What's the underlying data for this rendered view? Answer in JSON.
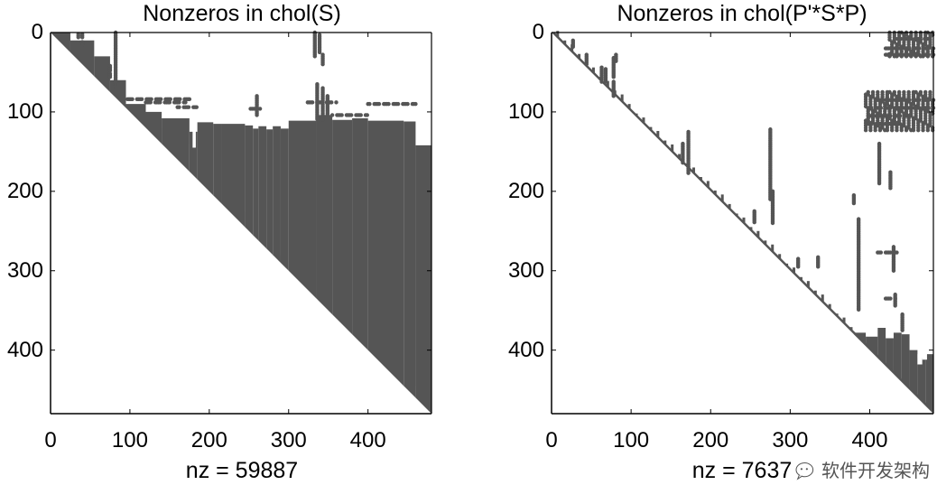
{
  "chart_data": [
    {
      "type": "heatmap",
      "subtype": "spy",
      "title": "Nonzeros in chol(S)",
      "xlabel": "nz = 59887",
      "ylabel": "",
      "matrix_size": 480,
      "xlim": [
        0,
        480
      ],
      "ylim": [
        0,
        480
      ],
      "y_reversed": true,
      "xticks": [
        "0",
        "100",
        "200",
        "300",
        "400"
      ],
      "yticks": [
        "0",
        "100",
        "200",
        "300",
        "400"
      ],
      "grid": false,
      "marker_color": "#555555",
      "dense_column_blocks": [
        {
          "cols": [
            0,
            25
          ],
          "top": 0
        },
        {
          "cols": [
            25,
            55
          ],
          "top": 10
        },
        {
          "cols": [
            55,
            75
          ],
          "top": 30
        },
        {
          "cols": [
            75,
            95
          ],
          "top": 60
        },
        {
          "cols": [
            95,
            120
          ],
          "top": 90
        },
        {
          "cols": [
            120,
            140
          ],
          "top": 100
        },
        {
          "cols": [
            140,
            175
          ],
          "top": 108
        },
        {
          "cols": [
            175,
            185
          ],
          "top": 125
        },
        {
          "cols": [
            185,
            205
          ],
          "top": 113
        },
        {
          "cols": [
            205,
            215
          ],
          "top": 115
        },
        {
          "cols": [
            215,
            245
          ],
          "top": 115
        },
        {
          "cols": [
            245,
            255
          ],
          "top": 117
        },
        {
          "cols": [
            255,
            262
          ],
          "top": 121
        },
        {
          "cols": [
            262,
            272
          ],
          "top": 118
        },
        {
          "cols": [
            272,
            280
          ],
          "top": 122
        },
        {
          "cols": [
            280,
            290
          ],
          "top": 118
        },
        {
          "cols": [
            290,
            300
          ],
          "top": 121
        },
        {
          "cols": [
            300,
            335
          ],
          "top": 111
        },
        {
          "cols": [
            335,
            355
          ],
          "top": 104
        },
        {
          "cols": [
            355,
            380
          ],
          "top": 110
        },
        {
          "cols": [
            380,
            400
          ],
          "top": 108
        },
        {
          "cols": [
            400,
            445
          ],
          "top": 111
        },
        {
          "cols": [
            445,
            460
          ],
          "top": 112
        },
        {
          "cols": [
            460,
            480
          ],
          "top": 142
        }
      ],
      "gaps": [
        {
          "cols": [
            179,
            183
          ],
          "rows": [
            115,
            145
          ]
        },
        {
          "cols": [
            140,
            152
          ],
          "rows": [
            86,
            94
          ]
        }
      ],
      "scatter_segments": [
        {
          "col": 82,
          "rows": [
            0,
            68
          ]
        },
        {
          "col": 35,
          "rows": [
            2,
            6
          ]
        },
        {
          "col": 40,
          "rows": [
            2,
            6
          ]
        },
        {
          "col": 40,
          "rows": [
            12,
            16
          ]
        },
        {
          "col": 75,
          "rows": [
            42,
            48
          ]
        },
        {
          "col": 75,
          "rows": [
            52,
            56
          ]
        },
        {
          "col": 333,
          "rows": [
            0,
            30
          ]
        },
        {
          "col": 339,
          "rows": [
            3,
            25
          ]
        },
        {
          "col": 343,
          "rows": [
            28,
            40
          ]
        },
        {
          "col": 336,
          "rows": [
            65,
            110
          ]
        },
        {
          "col": 343,
          "rows": [
            70,
            110
          ]
        },
        {
          "col": 349,
          "rows": [
            80,
            105
          ]
        },
        {
          "col": 260,
          "rows": [
            80,
            105
          ]
        }
      ],
      "scatter_rows": [
        {
          "row": 84,
          "cols": [
            95,
            180
          ]
        },
        {
          "row": 88,
          "cols": [
            120,
            170
          ]
        },
        {
          "row": 94,
          "cols": [
            160,
            185
          ]
        },
        {
          "row": 96,
          "cols": [
            250,
            265
          ]
        },
        {
          "row": 90,
          "cols": [
            400,
            460
          ]
        },
        {
          "row": 88,
          "cols": [
            320,
            360
          ]
        },
        {
          "row": 104,
          "cols": [
            355,
            400
          ]
        }
      ]
    },
    {
      "type": "heatmap",
      "subtype": "spy",
      "title": "Nonzeros in chol(P'*S*P)",
      "xlabel": "nz = 7637",
      "ylabel": "",
      "matrix_size": 480,
      "xlim": [
        0,
        480
      ],
      "ylim": [
        0,
        480
      ],
      "y_reversed": true,
      "xticks": [
        "0",
        "100",
        "200",
        "300",
        "400"
      ],
      "yticks": [
        "0",
        "100",
        "200",
        "300",
        "400"
      ],
      "grid": false,
      "marker_color": "#555555",
      "dense_column_blocks": [
        {
          "cols": [
            380,
            395
          ],
          "top": 378
        },
        {
          "cols": [
            395,
            410
          ],
          "top": 383
        },
        {
          "cols": [
            410,
            420
          ],
          "top": 372
        },
        {
          "cols": [
            420,
            430
          ],
          "top": 385
        },
        {
          "cols": [
            430,
            440
          ],
          "top": 378
        },
        {
          "cols": [
            440,
            450
          ],
          "top": 380
        },
        {
          "cols": [
            450,
            460
          ],
          "top": 400
        },
        {
          "cols": [
            460,
            470
          ],
          "top": 410
        },
        {
          "cols": [
            470,
            480
          ],
          "top": 405
        }
      ],
      "gaps": [
        {
          "cols": [
            460,
            466
          ],
          "rows": [
            405,
            418
          ]
        },
        {
          "cols": [
            466,
            472
          ],
          "rows": [
            402,
            412
          ]
        }
      ],
      "diagonal_band_width": 4,
      "scatter_segments": [
        {
          "col": 27,
          "rows": [
            10,
            18
          ]
        },
        {
          "col": 44,
          "rows": [
            28,
            40
          ]
        },
        {
          "col": 63,
          "rows": [
            44,
            62
          ]
        },
        {
          "col": 68,
          "rows": [
            46,
            62
          ]
        },
        {
          "col": 78,
          "rows": [
            32,
            56
          ]
        },
        {
          "col": 81,
          "rows": [
            28,
            36
          ]
        },
        {
          "col": 78,
          "rows": [
            62,
            80
          ]
        },
        {
          "col": 165,
          "rows": [
            140,
            165
          ]
        },
        {
          "col": 172,
          "rows": [
            125,
            178
          ]
        },
        {
          "col": 255,
          "rows": [
            225,
            240
          ]
        },
        {
          "col": 275,
          "rows": [
            122,
            210
          ]
        },
        {
          "col": 278,
          "rows": [
            200,
            240
          ]
        },
        {
          "col": 310,
          "rows": [
            285,
            295
          ]
        },
        {
          "col": 335,
          "rows": [
            283,
            295
          ]
        },
        {
          "col": 380,
          "rows": [
            205,
            215
          ]
        },
        {
          "col": 386,
          "rows": [
            235,
            350
          ]
        },
        {
          "col": 412,
          "rows": [
            140,
            190
          ]
        },
        {
          "col": 426,
          "rows": [
            176,
            196
          ]
        },
        {
          "col": 430,
          "rows": [
            270,
            300
          ]
        },
        {
          "col": 432,
          "rows": [
            330,
            345
          ]
        },
        {
          "col": 441,
          "rows": [
            355,
            375
          ]
        }
      ],
      "scatter_rows": [
        {
          "row": 20,
          "cols": [
            420,
            480
          ]
        },
        {
          "row": 8,
          "cols": [
            435,
            480
          ]
        },
        {
          "row": 28,
          "cols": [
            418,
            480
          ]
        },
        {
          "row": 85,
          "cols": [
            410,
            480
          ]
        },
        {
          "row": 95,
          "cols": [
            398,
            480
          ]
        },
        {
          "row": 105,
          "cols": [
            398,
            450
          ]
        },
        {
          "row": 115,
          "cols": [
            392,
            440
          ]
        },
        {
          "row": 277,
          "cols": [
            410,
            435
          ]
        },
        {
          "row": 335,
          "cols": [
            420,
            432
          ]
        }
      ],
      "dense_clusters": [
        {
          "cols": [
            425,
            480
          ],
          "rows": [
            0,
            32
          ]
        },
        {
          "cols": [
            395,
            480
          ],
          "rows": [
            75,
            125
          ]
        }
      ]
    }
  ],
  "watermark": {
    "icon": "wechat-icon",
    "text": "软件开发架构"
  }
}
